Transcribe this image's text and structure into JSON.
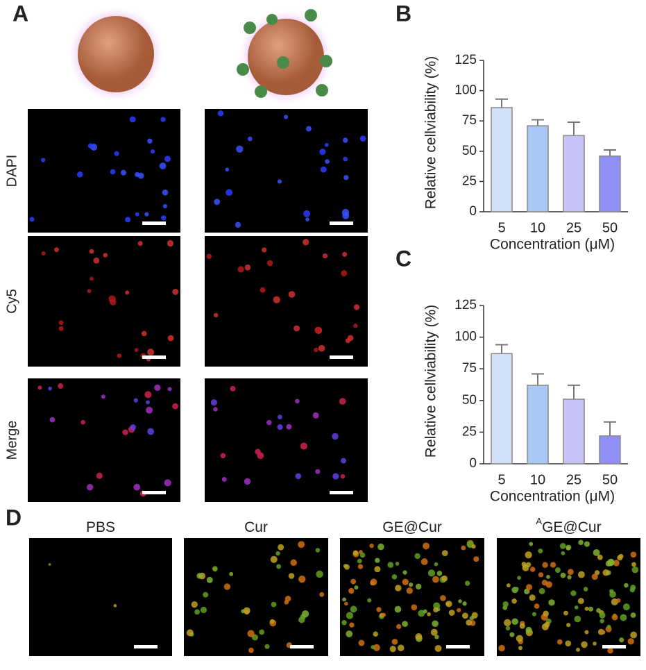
{
  "panel_a": {
    "label": "A",
    "rows": [
      "DAPI",
      "Cy5",
      "Merge"
    ]
  },
  "chart_data": [
    {
      "type": "bar",
      "label": "B",
      "ylabel": "Relative cellviability (%)",
      "xlabel": "Concentration (μM)",
      "categories": [
        "5",
        "10",
        "25",
        "50"
      ],
      "values": [
        86,
        71,
        63,
        46
      ],
      "errors": [
        7,
        5,
        11,
        5
      ],
      "colors": [
        "#cfe0f8",
        "#a9c8f5",
        "#c6c4f6",
        "#8f8ff5"
      ],
      "ylim": [
        0,
        125
      ],
      "yticks": [
        0,
        25,
        50,
        75,
        100,
        125
      ]
    },
    {
      "type": "bar",
      "label": "C",
      "ylabel": "Relative cellviability (%)",
      "xlabel": "Concentration (μM)",
      "categories": [
        "5",
        "10",
        "25",
        "50"
      ],
      "values": [
        87,
        62,
        51,
        22
      ],
      "errors": [
        7,
        9,
        11,
        11
      ],
      "colors": [
        "#cfe0f8",
        "#a9c8f5",
        "#c6c4f6",
        "#8f8ff5"
      ],
      "ylim": [
        0,
        125
      ],
      "yticks": [
        0,
        25,
        50,
        75,
        100,
        125
      ]
    }
  ],
  "panel_d": {
    "label": "D",
    "columns": [
      {
        "text": "PBS"
      },
      {
        "text": "Cur"
      },
      {
        "text": "GE@Cur"
      },
      {
        "sup": "A",
        "text": "GE@Cur"
      }
    ]
  }
}
